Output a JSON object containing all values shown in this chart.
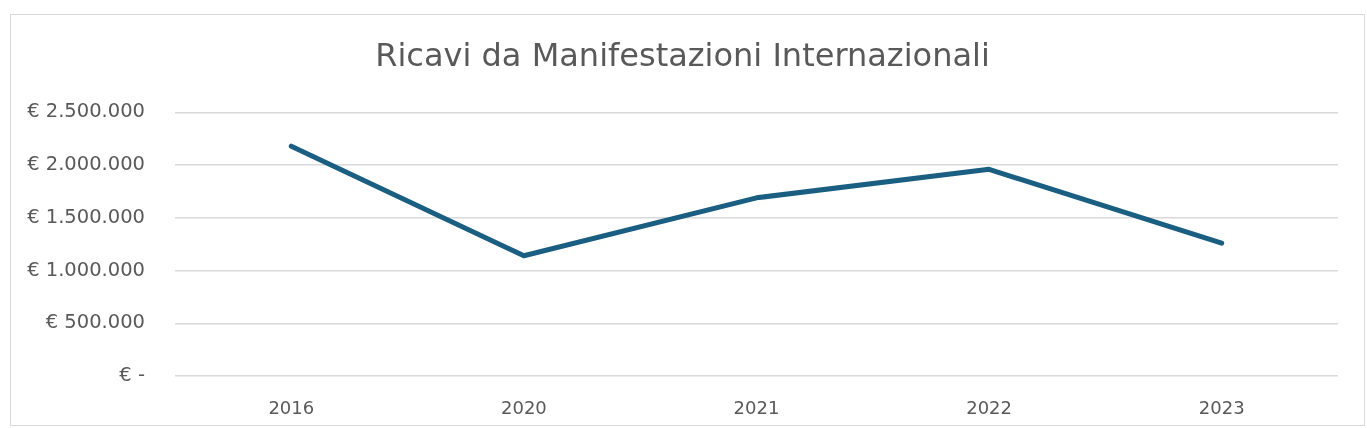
{
  "chart_data": {
    "type": "line",
    "title": "Ricavi da Manifestazioni Internazionali",
    "categories": [
      "2016",
      "2020",
      "2021",
      "2022",
      "2023"
    ],
    "series": [
      {
        "color": "#1a5e82",
        "values": [
          2180000,
          1140000,
          1690000,
          1960000,
          1260000
        ]
      }
    ],
    "ylim": [
      0,
      2500000
    ],
    "yticks": [
      {
        "value": 0,
        "label": "€ -"
      },
      {
        "value": 500000,
        "label": "€ 500.000"
      },
      {
        "value": 1000000,
        "label": "€ 1.000.000"
      },
      {
        "value": 1500000,
        "label": "€ 1.500.000"
      },
      {
        "value": 2000000,
        "label": "€ 2.000.000"
      },
      {
        "value": 2500000,
        "label": "€ 2.500.000"
      }
    ],
    "grid": "y",
    "line_style": "solid"
  }
}
